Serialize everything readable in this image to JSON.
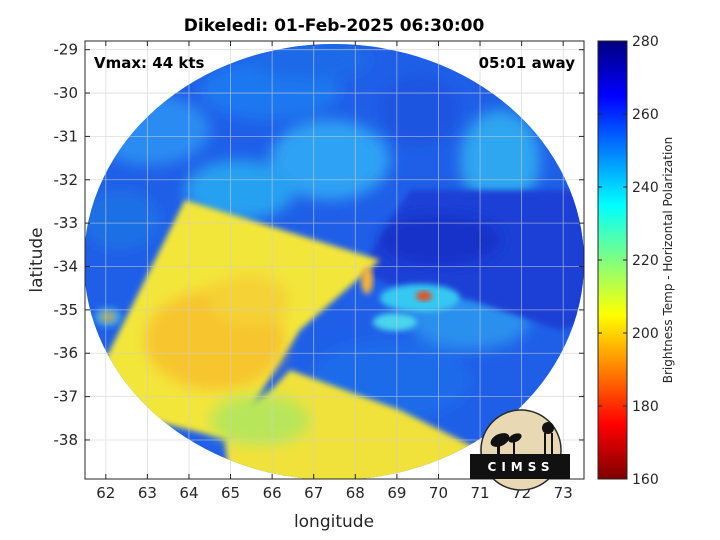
{
  "title": "Dikeledi: 01-Feb-2025 06:30:00",
  "vmax_text": "Vmax: 44 kts",
  "time_text": "05:01 away",
  "xlabel": "longitude",
  "ylabel": "latitude",
  "logo_text": "CIMSS",
  "colorbar": {
    "label": "Brightness Temp - Horizontal Polarization",
    "min": 160,
    "max": 280,
    "ticks": [
      "160",
      "180",
      "200",
      "220",
      "240",
      "260",
      "280"
    ],
    "colors": [
      "#7f0000",
      "#ff0000",
      "#ff8000",
      "#ffff00",
      "#80ff80",
      "#00ffff",
      "#0080ff",
      "#0000ff",
      "#00007f"
    ]
  },
  "map": {
    "lon_range": [
      61.5,
      73.5
    ],
    "lat_range": [
      -38.9,
      -28.8
    ],
    "xticks": [
      "62",
      "63",
      "64",
      "65",
      "66",
      "67",
      "68",
      "69",
      "70",
      "71",
      "72",
      "73"
    ],
    "yticks": [
      "-29",
      "-30",
      "-31",
      "-32",
      "-33",
      "-34",
      "-35",
      "-36",
      "-37",
      "-38"
    ],
    "storm_center": [
      69.5,
      -34.8
    ],
    "grid": true
  }
}
